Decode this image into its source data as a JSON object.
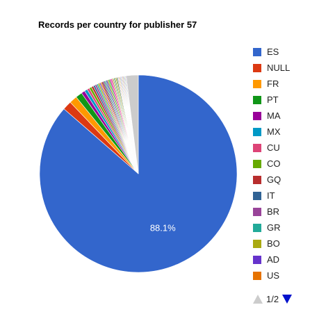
{
  "chart_data": {
    "type": "pie",
    "title": "Records per country for publisher 57",
    "series": [
      {
        "label": "ES",
        "value": 88.1,
        "color": "#3366cc"
      },
      {
        "label": "NULL",
        "value": 1.5,
        "color": "#dc3912"
      },
      {
        "label": "FR",
        "value": 1.3,
        "color": "#ff9900"
      },
      {
        "label": "PT",
        "value": 1.1,
        "color": "#109618"
      },
      {
        "label": "MA",
        "value": 0.6,
        "color": "#990099"
      },
      {
        "label": "MX",
        "value": 0.5,
        "color": "#0099c6"
      },
      {
        "label": "CU",
        "value": 0.4,
        "color": "#dd4477"
      },
      {
        "label": "CO",
        "value": 0.4,
        "color": "#66aa00"
      },
      {
        "label": "GQ",
        "value": 0.35,
        "color": "#b82e2e"
      },
      {
        "label": "IT",
        "value": 0.3,
        "color": "#316395"
      },
      {
        "label": "BR",
        "value": 0.3,
        "color": "#994499"
      },
      {
        "label": "GR",
        "value": 0.25,
        "color": "#22aa99"
      },
      {
        "label": "BO",
        "value": 0.25,
        "color": "#aaaa11"
      },
      {
        "label": "AD",
        "value": 0.2,
        "color": "#6633cc"
      },
      {
        "label": "US",
        "value": 0.2,
        "color": "#e67300"
      },
      {
        "label": "",
        "value": 0.2,
        "color": "#8b0707"
      },
      {
        "label": "",
        "value": 0.2,
        "color": "#651067"
      },
      {
        "label": "",
        "value": 0.2,
        "color": "#329262"
      },
      {
        "label": "",
        "value": 0.2,
        "color": "#5574a6"
      },
      {
        "label": "",
        "value": 0.2,
        "color": "#3b3eac"
      },
      {
        "label": "",
        "value": 0.2,
        "color": "#b77322"
      },
      {
        "label": "",
        "value": 0.2,
        "color": "#16d620"
      },
      {
        "label": "",
        "value": 0.2,
        "color": "#b91383"
      },
      {
        "label": "",
        "value": 0.2,
        "color": "#f4359e"
      },
      {
        "label": "",
        "value": 0.15,
        "color": "#9c5935"
      },
      {
        "label": "",
        "value": 0.15,
        "color": "#a9c413"
      },
      {
        "label": "",
        "value": 0.15,
        "color": "#2a778d"
      },
      {
        "label": "",
        "value": 0.15,
        "color": "#668d1c"
      },
      {
        "label": "",
        "value": 0.15,
        "color": "#bea413"
      },
      {
        "label": "",
        "value": 0.15,
        "color": "#0c5922"
      },
      {
        "label": "",
        "value": 0.1,
        "color": "#743411"
      },
      {
        "label": "",
        "value": 0.1,
        "color": "#3366cc"
      },
      {
        "label": "",
        "value": 0.1,
        "color": "#dc3912"
      },
      {
        "label": "",
        "value": 0.1,
        "color": "#ff9900"
      },
      {
        "label": "",
        "value": 0.1,
        "color": "#109618"
      },
      {
        "label": "",
        "value": 0.1,
        "color": "#990099"
      },
      {
        "label": "",
        "value": 0.1,
        "color": "#0099c6"
      },
      {
        "label": "",
        "value": 0.1,
        "color": "#dd4477"
      },
      {
        "label": "",
        "value": 0.1,
        "color": "#66aa00"
      },
      {
        "label": "",
        "value": 0.1,
        "color": "#b82e2e"
      },
      {
        "label": "",
        "value": 0.1,
        "color": "#316395"
      },
      {
        "label": "",
        "value": 0.1,
        "color": "#994499"
      },
      {
        "label": "",
        "value": 0.1,
        "color": "#22aa99"
      },
      {
        "label": "",
        "value": 0.1,
        "color": "#aaaa11"
      },
      {
        "label": "",
        "value": 0.1,
        "color": "#6633cc"
      },
      {
        "label": "",
        "value": 2.0,
        "color": "#cccccc"
      }
    ],
    "slice_labels": [
      {
        "series_index": 0,
        "text": "88.1%"
      }
    ],
    "legend": {
      "position": "right",
      "visible_items": 15,
      "page": "1/2"
    },
    "slice_border_color": "#ffffff",
    "label_color": "#ffffff"
  }
}
